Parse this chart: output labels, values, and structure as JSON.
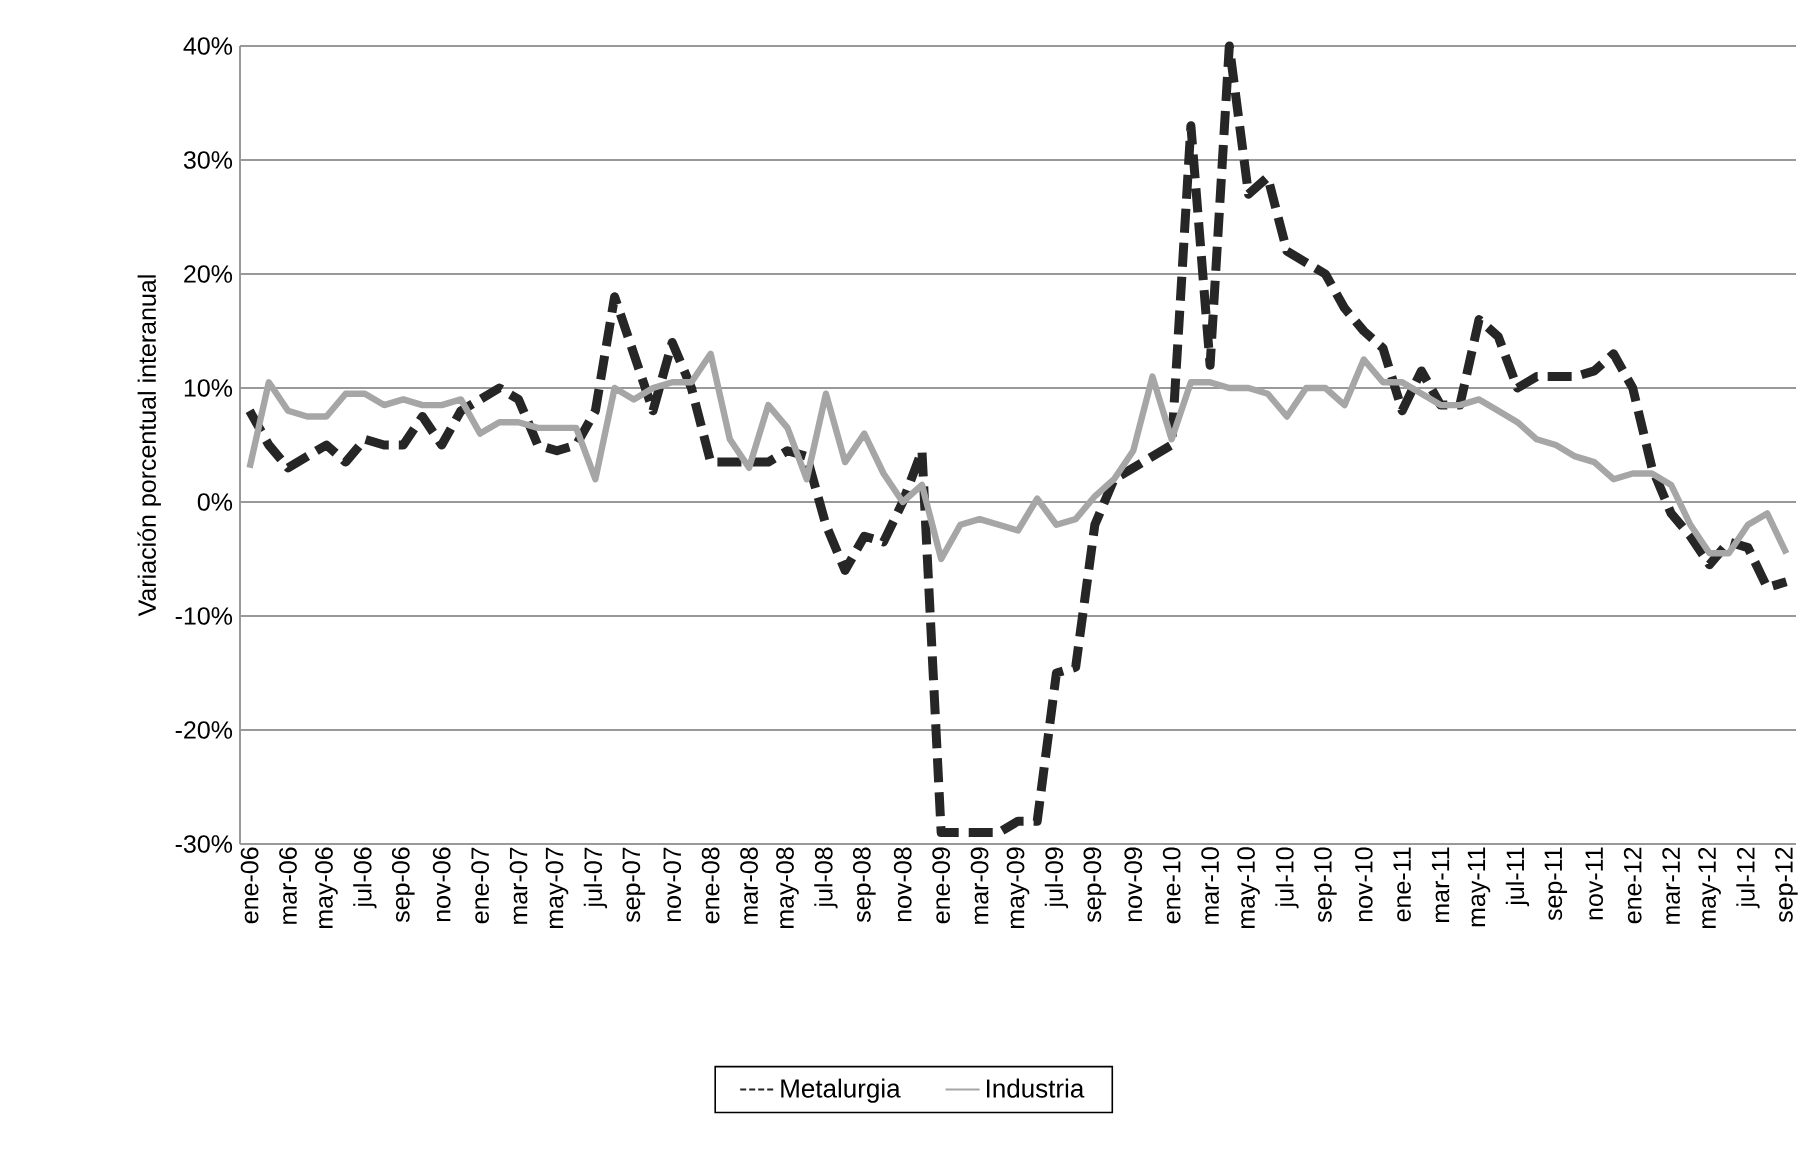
{
  "chart_data": {
    "type": "line",
    "ylabel": "Variación porcentual interanual",
    "categories": [
      "ene-06",
      null,
      "mar-06",
      null,
      "may-06",
      null,
      "jul-06",
      null,
      "sep-06",
      null,
      "nov-06",
      null,
      "ene-07",
      null,
      "mar-07",
      null,
      "may-07",
      null,
      "jul-07",
      null,
      "sep-07",
      null,
      "nov-07",
      null,
      "ene-08",
      null,
      "mar-08",
      null,
      "may-08",
      null,
      "jul-08",
      null,
      "sep-08",
      null,
      "nov-08",
      null,
      "ene-09",
      null,
      "mar-09",
      null,
      "may-09",
      null,
      "jul-09",
      null,
      "sep-09",
      null,
      "nov-09",
      null,
      "ene-10",
      null,
      "mar-10",
      null,
      "may-10",
      null,
      "jul-10",
      null,
      "sep-10",
      null,
      "nov-10",
      null,
      "ene-11",
      null,
      "mar-11",
      null,
      "may-11",
      null,
      "jul-11",
      null,
      "sep-11",
      null,
      "nov-11",
      null,
      "ene-12",
      null,
      "mar-12",
      null,
      "may-12",
      null,
      "jul-12",
      null,
      "sep-12"
    ],
    "series": [
      {
        "name": "Metalurgia",
        "color": "#262626",
        "line_style": "dashed",
        "values": [
          8,
          5,
          3,
          4,
          5,
          3.5,
          5.5,
          5,
          5,
          7.5,
          5,
          8,
          9,
          10,
          9,
          5,
          4.5,
          5,
          8,
          18,
          13,
          8,
          14,
          10,
          3.5,
          3.5,
          3.5,
          3.5,
          4.5,
          4,
          -2,
          -6,
          -3,
          -3.5,
          0,
          4.5,
          -29,
          -29,
          -29,
          -29,
          -28,
          -28,
          -15,
          -14.5,
          -2,
          2,
          3,
          4,
          5,
          33,
          12,
          40,
          27,
          28.5,
          22,
          21,
          20,
          17,
          15,
          13.5,
          8,
          11.5,
          8.5,
          8.5,
          16,
          14.5,
          10,
          11,
          11,
          11,
          11.5,
          13,
          10,
          3,
          -1,
          -3,
          -5.5,
          -3.5,
          -4,
          -7.5,
          -7
        ]
      },
      {
        "name": "Industria",
        "color": "#a6a6a6",
        "line_style": "solid",
        "values": [
          3,
          10.5,
          8,
          7.5,
          7.5,
          9.5,
          9.5,
          8.5,
          9,
          8.5,
          8.5,
          9,
          6,
          7,
          7,
          6.5,
          6.5,
          6.5,
          2,
          10,
          9,
          10,
          10.5,
          10.5,
          13,
          5.5,
          3,
          8.5,
          6.5,
          2,
          9.5,
          3.5,
          6,
          2.5,
          0,
          1.5,
          -5,
          -2,
          -1.5,
          -2,
          -2.5,
          0.3,
          -2,
          -1.5,
          0.5,
          2,
          4.5,
          11,
          5.5,
          10.5,
          10.5,
          10,
          10,
          9.5,
          7.5,
          10,
          10,
          8.5,
          12.5,
          10.5,
          10.5,
          9.5,
          8.5,
          8.5,
          9,
          8,
          7,
          5.5,
          5,
          4,
          3.5,
          2,
          2.5,
          2.5,
          1.5,
          -2,
          -4.5,
          -4.5,
          -2,
          -1,
          -4.5
        ]
      }
    ],
    "ylim": [
      -30,
      40
    ],
    "yticks": [
      {
        "value": -30,
        "label": "-30%"
      },
      {
        "value": -20,
        "label": "-20%"
      },
      {
        "value": -10,
        "label": "-10%"
      },
      {
        "value": 0,
        "label": "0%"
      },
      {
        "value": 10,
        "label": "10%"
      },
      {
        "value": 20,
        "label": "20%"
      },
      {
        "value": 30,
        "label": "30%"
      },
      {
        "value": 40,
        "label": "40%"
      }
    ],
    "grid": "y",
    "legend": "bottom",
    "marker": "none"
  }
}
